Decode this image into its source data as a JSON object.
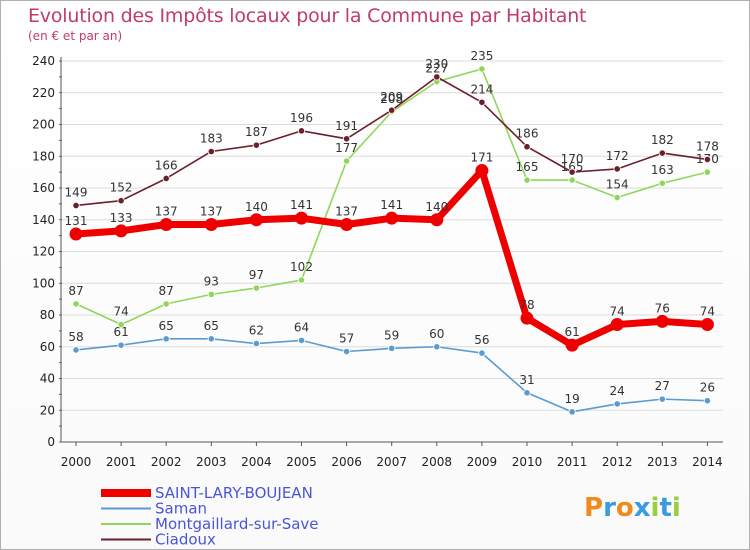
{
  "chart_data": {
    "type": "line",
    "title": "Evolution des Impôts locaux pour la Commune par Habitant",
    "subtitle": "(en € et par an)",
    "x": [
      "2000",
      "2001",
      "2002",
      "2003",
      "2004",
      "2005",
      "2006",
      "2007",
      "2008",
      "2009",
      "2010",
      "2011",
      "2012",
      "2013",
      "2014"
    ],
    "ylim": [
      0,
      240
    ],
    "yticks": [
      0,
      20,
      40,
      60,
      80,
      100,
      120,
      140,
      160,
      180,
      200,
      220,
      240
    ],
    "grid": "horizontal",
    "legend_position": "bottom-left",
    "series": [
      {
        "name": "SAINT-LARY-BOUJEAN",
        "color": "#ee0000",
        "values": [
          131,
          133,
          137,
          137,
          140,
          141,
          137,
          141,
          140,
          171,
          78,
          61,
          74,
          76,
          74
        ]
      },
      {
        "name": "Saman",
        "color": "#5b9bd0",
        "values": [
          58,
          61,
          65,
          65,
          62,
          64,
          57,
          59,
          60,
          56,
          31,
          19,
          24,
          27,
          26
        ]
      },
      {
        "name": "Montgaillard-sur-Save",
        "color": "#90d65a",
        "values": [
          87,
          74,
          87,
          93,
          97,
          102,
          177,
          208,
          227,
          235,
          165,
          165,
          154,
          163,
          170
        ]
      },
      {
        "name": "Ciadoux",
        "color": "#6b1f2a",
        "values": [
          149,
          152,
          166,
          183,
          187,
          196,
          191,
          209,
          230,
          214,
          186,
          170,
          172,
          182,
          178
        ]
      }
    ]
  },
  "logo": {
    "text": "Proxiti",
    "letters": [
      {
        "ch": "P",
        "color": "#f08a1c"
      },
      {
        "ch": "r",
        "color": "#3b9be0"
      },
      {
        "ch": "o",
        "color": "#f08a1c"
      },
      {
        "ch": "x",
        "color": "#3b9be0"
      },
      {
        "ch": "i",
        "color": "#9ccd3c"
      },
      {
        "ch": "t",
        "color": "#3b9be0"
      },
      {
        "ch": "i",
        "color": "#9ccd3c"
      }
    ]
  }
}
